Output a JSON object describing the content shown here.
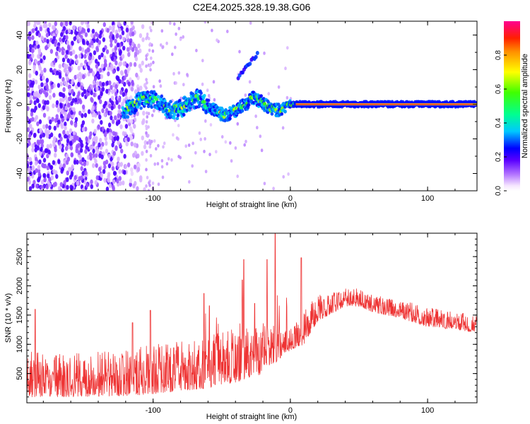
{
  "title": "C2E4.2025.328.19.38.G06",
  "chart_data": [
    {
      "type": "heatmap",
      "name": "spectrogram",
      "xlabel": "Height of straight line (km)",
      "ylabel": "Frequency (Hz)",
      "xlim": [
        -192,
        136
      ],
      "ylim": [
        -50,
        48
      ],
      "xticks": [
        -100,
        0,
        100
      ],
      "yticks": [
        -40,
        -20,
        0,
        20,
        40
      ],
      "colorbar": {
        "label": "Normalized spectral amplitude",
        "range": [
          0,
          1
        ],
        "ticks": [
          0.0,
          0.2,
          0.4,
          0.6,
          0.8
        ]
      },
      "features": [
        {
          "kind": "noise-band",
          "x_range": [
            -192,
            -105
          ],
          "y_range": [
            -50,
            48
          ],
          "level": 0.15
        },
        {
          "kind": "noise-sparse",
          "x_range": [
            -105,
            136
          ],
          "y_range": [
            -50,
            48
          ],
          "level": 0.05
        },
        {
          "kind": "main-line",
          "x_range": [
            -122,
            136
          ],
          "y_approx": 0,
          "level_start": 0.35,
          "level_end": 0.95
        },
        {
          "kind": "secondary-blob",
          "x": -32,
          "y": 22,
          "level": 0.2
        }
      ]
    },
    {
      "type": "line",
      "name": "snr",
      "xlabel": "Height of straight line (km)",
      "ylabel": "SNR (10 * v/v)",
      "xlim": [
        -192,
        136
      ],
      "ylim": [
        0,
        2900
      ],
      "xticks": [
        -100,
        0,
        100
      ],
      "yticks": [
        500,
        1000,
        1500,
        2000,
        2500
      ],
      "color": "#ee3333",
      "envelope": {
        "x": [
          -192,
          -160,
          -120,
          -100,
          -80,
          -60,
          -40,
          -20,
          -10,
          0,
          10,
          20,
          40,
          50,
          60,
          80,
          100,
          120,
          136
        ],
        "base": [
          100,
          100,
          120,
          150,
          200,
          250,
          350,
          500,
          700,
          900,
          1000,
          1400,
          1650,
          1650,
          1550,
          1450,
          1300,
          1250,
          1200
        ],
        "top": [
          900,
          850,
          900,
          1000,
          1050,
          1150,
          1250,
          1300,
          1400,
          1350,
          1600,
          1850,
          1950,
          1950,
          1850,
          1750,
          1650,
          1550,
          1500
        ]
      },
      "spikes": [
        {
          "x": -186,
          "y": 1600
        },
        {
          "x": -115,
          "y": 1370
        },
        {
          "x": -102,
          "y": 1580
        },
        {
          "x": -63,
          "y": 1870
        },
        {
          "x": -59,
          "y": 1660
        },
        {
          "x": -35,
          "y": 2100
        },
        {
          "x": -34,
          "y": 2450
        },
        {
          "x": -26,
          "y": 1700
        },
        {
          "x": -17,
          "y": 2450
        },
        {
          "x": -11,
          "y": 2900
        },
        {
          "x": 8,
          "y": 2480
        }
      ]
    }
  ]
}
